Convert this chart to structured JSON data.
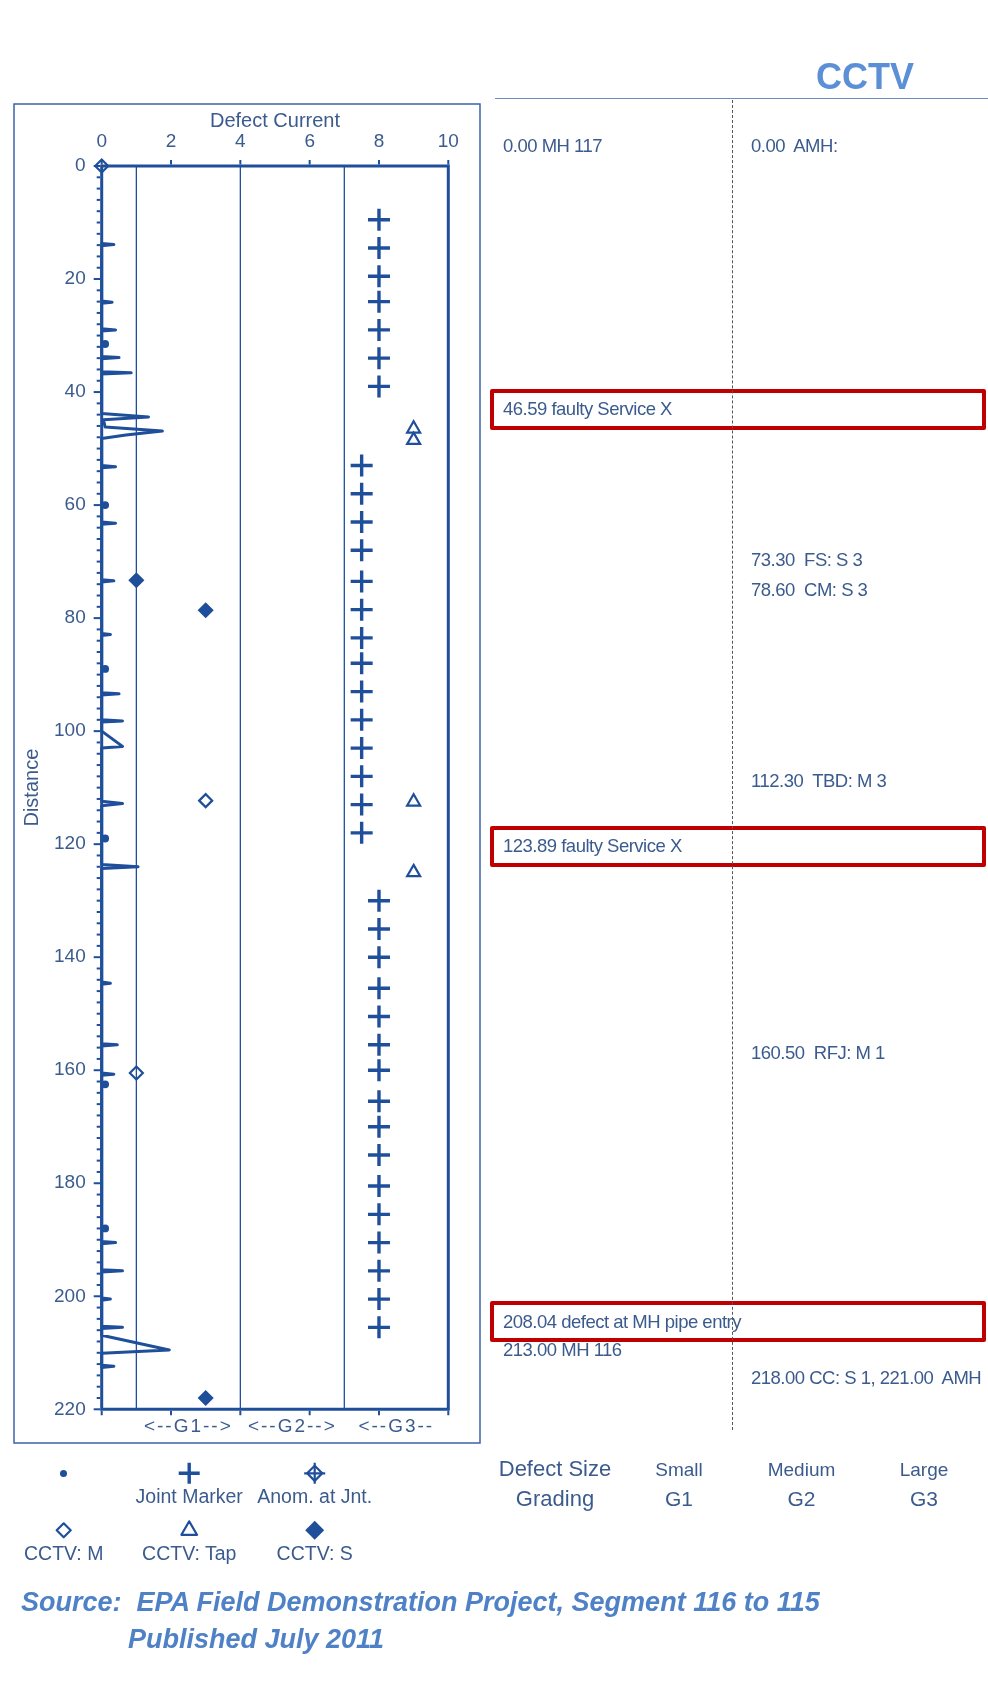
{
  "chart_data": [
    {
      "type": "line",
      "xlabel": "Defect Current",
      "ylabel": "Distance",
      "xlim": [
        0,
        10
      ],
      "xticks": [
        0,
        2,
        4,
        6,
        8,
        10
      ],
      "ylim": [
        220,
        0
      ],
      "yticks": [
        0,
        {
          "value": 2,
          "label": null
        },
        {
          "value": 4,
          "label": null
        },
        {
          "value": 6,
          "label": null
        },
        {
          "value": 8,
          "label": null
        },
        {
          "value": 10,
          "label": null
        },
        {
          "value": 12,
          "label": null
        },
        {
          "value": 14,
          "label": null
        },
        {
          "value": 16,
          "label": null
        },
        {
          "value": 18,
          "label": null
        },
        20,
        {
          "value": 22,
          "label": null
        },
        {
          "value": 24,
          "label": null
        },
        {
          "value": 26,
          "label": null
        },
        {
          "value": 28,
          "label": null
        },
        {
          "value": 30,
          "label": null
        },
        {
          "value": 32,
          "label": null
        },
        {
          "value": 34,
          "label": null
        },
        {
          "value": 36,
          "label": null
        },
        {
          "value": 38,
          "label": null
        },
        40,
        {
          "value": 42,
          "label": null
        },
        {
          "value": 44,
          "label": null
        },
        {
          "value": 46,
          "label": null
        },
        {
          "value": 48,
          "label": null
        },
        {
          "value": 50,
          "label": null
        },
        {
          "value": 52,
          "label": null
        },
        {
          "value": 54,
          "label": null
        },
        {
          "value": 56,
          "label": null
        },
        {
          "value": 58,
          "label": null
        },
        60,
        {
          "value": 62,
          "label": null
        },
        {
          "value": 64,
          "label": null
        },
        {
          "value": 66,
          "label": null
        },
        {
          "value": 68,
          "label": null
        },
        {
          "value": 70,
          "label": null
        },
        {
          "value": 72,
          "label": null
        },
        {
          "value": 74,
          "label": null
        },
        {
          "value": 76,
          "label": null
        },
        {
          "value": 78,
          "label": null
        },
        80,
        {
          "value": 82,
          "label": null
        },
        {
          "value": 84,
          "label": null
        },
        {
          "value": 86,
          "label": null
        },
        {
          "value": 88,
          "label": null
        },
        {
          "value": 90,
          "label": null
        },
        {
          "value": 92,
          "label": null
        },
        {
          "value": 94,
          "label": null
        },
        {
          "value": 96,
          "label": null
        },
        {
          "value": 98,
          "label": null
        },
        100,
        {
          "value": 102,
          "label": null
        },
        {
          "value": 104,
          "label": null
        },
        {
          "value": 106,
          "label": null
        },
        {
          "value": 108,
          "label": null
        },
        {
          "value": 110,
          "label": null
        },
        {
          "value": 112,
          "label": null
        },
        {
          "value": 114,
          "label": null
        },
        {
          "value": 116,
          "label": null
        },
        {
          "value": 118,
          "label": null
        },
        120,
        {
          "value": 122,
          "label": null
        },
        {
          "value": 124,
          "label": null
        },
        {
          "value": 126,
          "label": null
        },
        {
          "value": 128,
          "label": null
        },
        {
          "value": 130,
          "label": null
        },
        {
          "value": 132,
          "label": null
        },
        {
          "value": 134,
          "label": null
        },
        {
          "value": 136,
          "label": null
        },
        {
          "value": 138,
          "label": null
        },
        140,
        {
          "value": 142,
          "label": null
        },
        {
          "value": 144,
          "label": null
        },
        {
          "value": 146,
          "label": null
        },
        {
          "value": 148,
          "label": null
        },
        {
          "value": 150,
          "label": null
        },
        {
          "value": 152,
          "label": null
        },
        {
          "value": 154,
          "label": null
        },
        {
          "value": 156,
          "label": null
        },
        {
          "value": 158,
          "label": null
        },
        160,
        {
          "value": 162,
          "label": null
        },
        {
          "value": 164,
          "label": null
        },
        {
          "value": 166,
          "label": null
        },
        {
          "value": 168,
          "label": null
        },
        {
          "value": 170,
          "label": null
        },
        {
          "value": 172,
          "label": null
        },
        {
          "value": 174,
          "label": null
        },
        {
          "value": 176,
          "label": null
        },
        {
          "value": 178,
          "label": null
        },
        180,
        {
          "value": 182,
          "label": null
        },
        {
          "value": 184,
          "label": null
        },
        {
          "value": 186,
          "label": null
        },
        {
          "value": 188,
          "label": null
        },
        {
          "value": 190,
          "label": null
        },
        {
          "value": 192,
          "label": null
        },
        {
          "value": 194,
          "label": null
        },
        {
          "value": 196,
          "label": null
        },
        {
          "value": 198,
          "label": null
        },
        200,
        {
          "value": 202,
          "label": null
        },
        {
          "value": 204,
          "label": null
        },
        {
          "value": 206,
          "label": null
        },
        {
          "value": 208,
          "label": null
        },
        {
          "value": 210,
          "label": null
        },
        {
          "value": 212,
          "label": null
        },
        {
          "value": 214,
          "label": null
        },
        {
          "value": 216,
          "label": null
        },
        {
          "value": 218,
          "label": null
        },
        220
      ],
      "legend": "bottom left",
      "ref_lines": [
        {
          "axis": "x",
          "value": 1
        },
        {
          "axis": "x",
          "value": 4
        },
        {
          "axis": "x",
          "value": 7
        }
      ],
      "series": [
        {
          "type": "line",
          "color": "#1f4f9a",
          "marker": "none",
          "x": [
            0,
            0.35,
            0,
            0,
            0.3,
            0,
            0,
            0.4,
            0,
            0,
            0.5,
            0,
            0,
            0.85,
            0,
            0,
            1.35,
            0.05,
            0.1,
            1.75,
            0.7,
            0,
            0,
            0.4,
            0,
            0,
            0.4,
            0,
            0,
            0.35,
            0,
            0,
            0.25,
            0,
            0,
            0.5,
            0,
            0,
            0.6,
            0,
            0,
            0.6,
            0,
            0,
            0.6,
            0,
            0,
            1.05,
            0,
            0,
            0.25,
            0,
            0,
            0.45,
            0,
            0,
            0.35,
            0,
            0,
            0.4,
            0,
            0,
            0.6,
            0,
            0,
            0.25,
            0,
            0,
            0.6,
            0,
            0,
            1.95,
            0,
            0,
            0.35,
            0
          ],
          "values": [
            13.7,
            13.9,
            14.1,
            23.9,
            24.1,
            24.3,
            28.8,
            29,
            29.2,
            33.7,
            33.9,
            34.1,
            36.4,
            36.6,
            36.8,
            43.8,
            44.4,
            44.9,
            46.2,
            46.9,
            47.6,
            48.2,
            53,
            53.2,
            53.4,
            63,
            63.2,
            63.4,
            73.2,
            73.4,
            73.6,
            82.7,
            82.9,
            83.1,
            93.2,
            93.4,
            93.6,
            98,
            98.2,
            98.4,
            100,
            102.7,
            103,
            112.4,
            112.8,
            113.2,
            123.6,
            124,
            124.3,
            144.4,
            144.6,
            144.8,
            155.3,
            155.5,
            155.7,
            160.5,
            160.7,
            160.9,
            190.3,
            190.5,
            190.7,
            195.3,
            195.5,
            195.7,
            200.3,
            200.5,
            200.7,
            205.3,
            205.5,
            205.7,
            206.9,
            209.5,
            210.1,
            212.2,
            212.4,
            212.6
          ]
        },
        {
          "type": "scatter",
          "color": "#1f4f9a",
          "marker": "circle",
          "x": [
            0.1,
            0.1,
            0.1,
            0.1,
            0.1,
            0.1
          ],
          "values": [
            31.5,
            60,
            89,
            119,
            162.5,
            188
          ]
        },
        {
          "type": "scatter",
          "name": "Joint Marker",
          "color": "#1f4f9a",
          "marker": "cross",
          "x": [
            8,
            8,
            8,
            8,
            8,
            8,
            8,
            7.5,
            7.5,
            7.5,
            7.5,
            7.5,
            7.5,
            7.5,
            7.5,
            7.5,
            7.5,
            7.5,
            7.5,
            7.5,
            7.5,
            8,
            8,
            8,
            8,
            8,
            8,
            8,
            8,
            8,
            8,
            8,
            8,
            8,
            8,
            8,
            8
          ],
          "values": [
            9.5,
            14.5,
            19.5,
            24,
            29,
            34,
            39,
            53,
            58,
            63,
            68,
            73.5,
            78.5,
            83.5,
            88,
            93,
            98,
            103,
            108,
            113,
            118,
            130,
            135,
            140,
            145.5,
            150.5,
            155.5,
            160,
            165.5,
            170,
            175,
            180.5,
            185.5,
            190.5,
            195.5,
            200.5,
            205.5
          ]
        },
        {
          "type": "scatter",
          "name": "Anom. at Jnt.",
          "color": "#1f4f9a",
          "marker": "diamond"
        },
        {
          "type": "scatter",
          "name": "CCTV: M",
          "color": "#1f4f9a",
          "marker": "diamond",
          "x": [
            0,
            3,
            1
          ],
          "values": [
            0,
            112.3,
            160.5
          ]
        },
        {
          "type": "scatter",
          "name": "CCTV: Tap",
          "color": "#1f4f9a",
          "marker": "triangle",
          "x": [
            9,
            9,
            9,
            9
          ],
          "values": [
            46.5,
            48.5,
            112.5,
            125
          ]
        },
        {
          "type": "scatter",
          "name": "CCTV: S",
          "color": "#1f4f9a",
          "marker": "diamond",
          "x": [
            1,
            3,
            3
          ],
          "values": [
            73.3,
            78.6,
            218
          ]
        }
      ],
      "annotations": [
        "<--G1-->",
        "<--G2-->",
        "<--G3--",
        "Source:  EPA Field Demonstration Project, Segment 116 to 115",
        "Published July 2011"
      ]
    },
    {
      "type": "other",
      "annotations": [
        "0.00 MH 117",
        "46.59 faulty Service X",
        "123.89 faulty Service X",
        "208.04 defect at MH pipe entry",
        "213.00 MH 116"
      ]
    },
    {
      "type": "other",
      "title": "CCTV",
      "annotations": [
        "0.00  AMH:",
        "73.30  FS: S 3",
        "78.60  CM: S 3",
        "112.30  TBD: M 3",
        "160.50  RFJ: M 1",
        "218.00 CC: S 1, 221.00  AMH"
      ]
    },
    {
      "type": "other",
      "title": "Defect Size Grading",
      "annotations": [
        "Small",
        "G1",
        "Medium",
        "G2",
        "Large",
        "G3"
      ]
    }
  ]
}
